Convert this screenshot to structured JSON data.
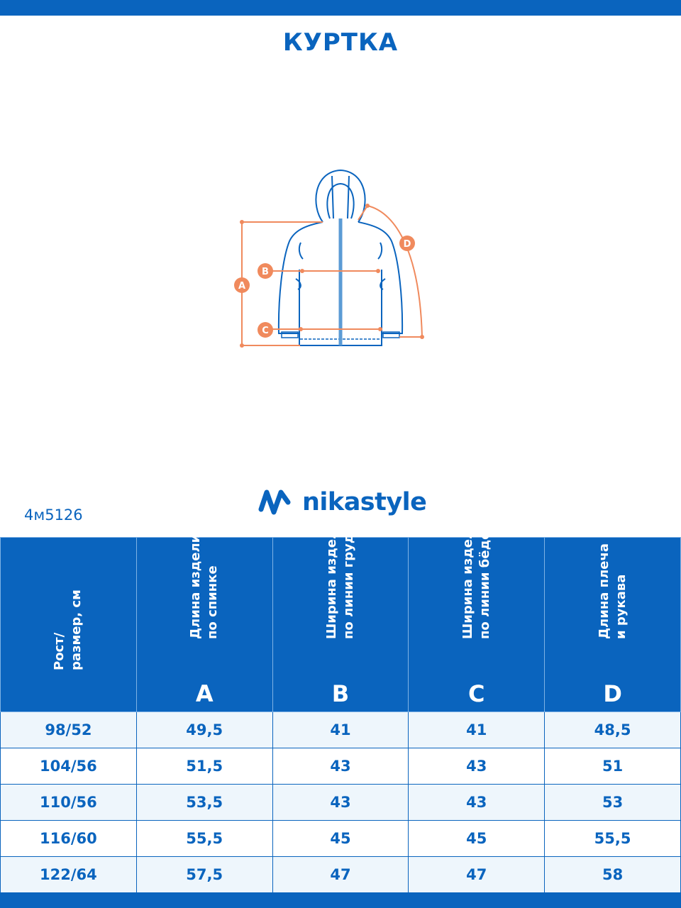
{
  "title": "КУРТКА",
  "diagram": {
    "labels": [
      "A",
      "B",
      "C",
      "D"
    ],
    "colors": {
      "garment": "#0a64be",
      "measure": "#f08a5d",
      "zipper": "#5b9bd5"
    }
  },
  "brand": {
    "name": "nikastyle",
    "color": "#0a64be"
  },
  "article": "4м5126",
  "table": {
    "headers": [
      {
        "text": "Рост/\nразмер, см",
        "letter": ""
      },
      {
        "text": "Длина изделия\nпо спинке",
        "letter": "A"
      },
      {
        "text": "Ширина изделия\nпо линии груди",
        "letter": "B"
      },
      {
        "text": "Ширина изделия\nпо линии бёдер",
        "letter": "C"
      },
      {
        "text": "Длина плеча\nи рукава",
        "letter": "D"
      }
    ],
    "rows": [
      [
        "98/52",
        "49,5",
        "41",
        "41",
        "48,5"
      ],
      [
        "104/56",
        "51,5",
        "43",
        "43",
        "51"
      ],
      [
        "110/56",
        "53,5",
        "43",
        "43",
        "53"
      ],
      [
        "116/60",
        "55,5",
        "45",
        "45",
        "55,5"
      ],
      [
        "122/64",
        "57,5",
        "47",
        "47",
        "58"
      ]
    ]
  }
}
